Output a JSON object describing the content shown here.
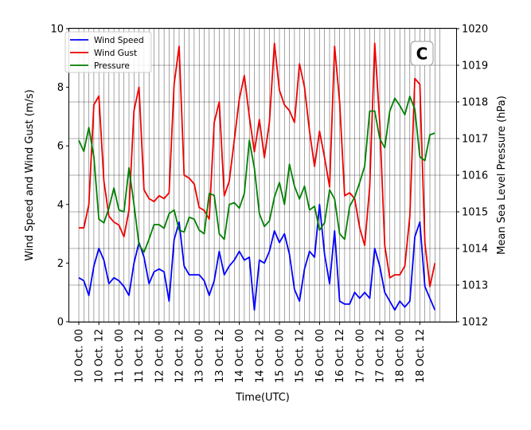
{
  "chart_data": {
    "type": "line",
    "title": "",
    "panel_label": "C",
    "xlabel": "Time(UTC)",
    "ylabel_left": "Wind Speed and Wind Gust (m/s)",
    "ylabel_right": "Mean Sea Level Pressure (hPa)",
    "ylim_left": [
      0,
      10
    ],
    "ylim_right": [
      1012,
      1020
    ],
    "yticks_left": [
      "0",
      "2",
      "4",
      "6",
      "8",
      "10"
    ],
    "yticks_right": [
      "1012",
      "1013",
      "1014",
      "1015",
      "1016",
      "1017",
      "1018",
      "1019",
      "1020"
    ],
    "x_interval_hours": 3,
    "xtick_labels": [
      "10 Oct. 00",
      "10 Oct. 12",
      "11 Oct. 00",
      "11 Oct. 12",
      "12 Oct. 00",
      "12 Oct. 12",
      "13 Oct. 00",
      "13 Oct. 12",
      "14 Oct. 00",
      "14 Oct. 12",
      "15 Oct. 00",
      "15 Oct. 12",
      "16 Oct. 00",
      "16 Oct. 12",
      "17 Oct. 00",
      "17 Oct. 12",
      "18 Oct. 00",
      "18 Oct. 12"
    ],
    "grid": "vertical lines every 3 h, horizontal lines at pressure ticks",
    "legend_position": "top-left",
    "series": [
      {
        "name": "Wind Speed",
        "axis": "left",
        "color": "#0000ff",
        "values": [
          1.5,
          1.4,
          0.9,
          1.9,
          2.5,
          2.1,
          1.3,
          1.5,
          1.4,
          1.2,
          0.9,
          2.0,
          2.7,
          2.2,
          1.3,
          1.7,
          1.8,
          1.7,
          0.7,
          2.8,
          3.4,
          1.9,
          1.6,
          1.6,
          1.6,
          1.4,
          0.9,
          1.4,
          2.4,
          1.6,
          1.9,
          2.1,
          2.4,
          2.1,
          2.2,
          0.4,
          2.1,
          2.0,
          2.4,
          3.1,
          2.7,
          3.0,
          2.3,
          1.1,
          0.7,
          1.8,
          2.4,
          2.2,
          4.0,
          2.3,
          1.3,
          3.1,
          0.7,
          0.6,
          0.6,
          1.0,
          0.8,
          1.0,
          0.8,
          2.5,
          1.9,
          1.0,
          0.7,
          0.4,
          0.7,
          0.5,
          0.7,
          2.9,
          3.4,
          1.2,
          0.8,
          0.4
        ]
      },
      {
        "name": "Wind Gust",
        "axis": "left",
        "color": "#ee0000",
        "values": [
          3.2,
          3.2,
          4.0,
          7.4,
          7.7,
          4.8,
          3.6,
          3.4,
          3.3,
          2.9,
          3.8,
          7.2,
          8.0,
          4.5,
          4.2,
          4.1,
          4.3,
          4.2,
          4.4,
          8.1,
          9.4,
          5.0,
          4.9,
          4.7,
          3.9,
          3.8,
          3.5,
          6.8,
          7.5,
          4.3,
          4.8,
          6.2,
          7.6,
          8.4,
          7.0,
          5.8,
          6.9,
          5.6,
          6.8,
          9.5,
          7.9,
          7.4,
          7.2,
          6.8,
          8.8,
          8.0,
          6.5,
          5.3,
          6.5,
          5.6,
          4.6,
          9.4,
          7.5,
          4.3,
          4.4,
          4.2,
          3.2,
          2.6,
          4.6,
          9.5,
          6.8,
          2.6,
          1.5,
          1.6,
          1.6,
          1.9,
          3.6,
          8.3,
          8.1,
          2.7,
          1.2,
          2.0
        ]
      },
      {
        "name": "Pressure",
        "axis": "right",
        "color": "#008000",
        "values": [
          1016.95,
          1016.65,
          1017.3,
          1016.5,
          1014.8,
          1014.7,
          1015.1,
          1015.65,
          1015.05,
          1015.0,
          1016.2,
          1015.2,
          1014.1,
          1013.9,
          1014.25,
          1014.65,
          1014.65,
          1014.55,
          1014.95,
          1015.05,
          1014.5,
          1014.45,
          1014.85,
          1014.8,
          1014.5,
          1014.4,
          1015.5,
          1015.45,
          1014.4,
          1014.25,
          1015.2,
          1015.25,
          1015.1,
          1015.5,
          1016.95,
          1016.2,
          1014.95,
          1014.6,
          1014.75,
          1015.4,
          1015.8,
          1015.2,
          1016.3,
          1015.7,
          1015.35,
          1015.7,
          1015.05,
          1015.15,
          1014.5,
          1014.7,
          1015.6,
          1015.35,
          1014.4,
          1014.25,
          1015.15,
          1015.4,
          1015.8,
          1016.25,
          1017.75,
          1017.75,
          1017.0,
          1016.75,
          1017.75,
          1018.1,
          1017.9,
          1017.65,
          1018.15,
          1017.8,
          1016.5,
          1016.4,
          1017.1,
          1017.15
        ]
      }
    ]
  }
}
